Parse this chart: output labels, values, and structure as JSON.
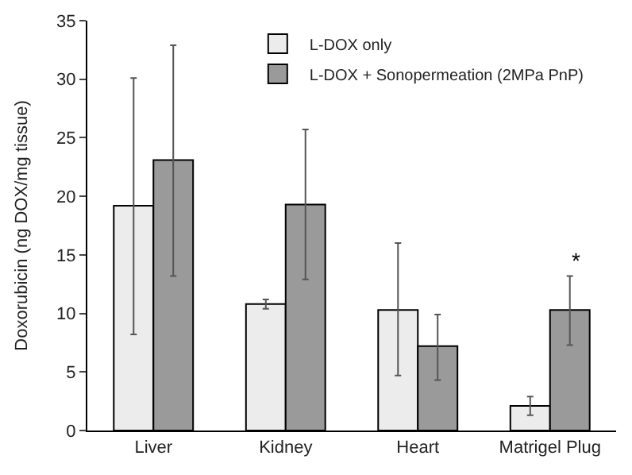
{
  "chart_data": {
    "type": "bar",
    "ylabel": "Doxorubicin (ng DOX/mg tissue)",
    "categories": [
      "Liver",
      "Kidney",
      "Heart",
      "Matrigel Plug"
    ],
    "series": [
      {
        "name": "L-DOX only",
        "color": "#ececec",
        "values": [
          19.2,
          10.8,
          10.3,
          2.1
        ],
        "errors": [
          [
            8.2,
            30.1
          ],
          [
            10.4,
            11.2
          ],
          [
            4.7,
            16.0
          ],
          [
            1.3,
            2.9
          ]
        ]
      },
      {
        "name": "L-DOX + Sonopermeation (2MPa PnP)",
        "color": "#9a9a9a",
        "values": [
          23.1,
          19.3,
          7.2,
          10.3
        ],
        "errors": [
          [
            13.2,
            32.9
          ],
          [
            12.9,
            25.7
          ],
          [
            4.3,
            9.9
          ],
          [
            7.3,
            13.2
          ]
        ]
      }
    ],
    "ylim": [
      0,
      35
    ],
    "yticks": [
      0,
      5,
      10,
      15,
      20,
      25,
      30,
      35
    ],
    "legend": "top right",
    "annotations": [
      "*"
    ]
  }
}
